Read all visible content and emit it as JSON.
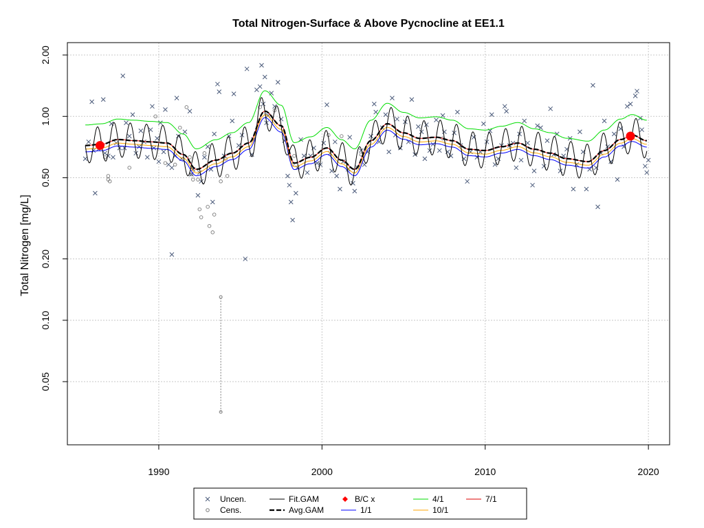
{
  "chart_data": {
    "type": "scatter",
    "title": "Total Nitrogen-Surface & Above Pycnocline at EE1.1",
    "xlabel": "",
    "ylabel": "Total Nitrogen [mg/L]",
    "y_scale": "log",
    "xlim": [
      1984.4,
      2021.3
    ],
    "ylim": [
      0.0245,
      2.3
    ],
    "x_ticks": [
      1990,
      2000,
      2010,
      2020
    ],
    "y_ticks": [
      0.05,
      0.1,
      0.2,
      0.5,
      1.0,
      2.0
    ],
    "y_tick_labels": [
      "0.05",
      "0.10",
      "0.20",
      "0.50",
      "1.00",
      "2.00"
    ],
    "grid": true,
    "legend_position": "bottom",
    "colors": {
      "uncen": "#4a5a7a",
      "cens": "#7a7a7a",
      "fit": "#000000",
      "avg": "#000000",
      "bc": "#ff0000",
      "s1": "#0000ff",
      "s4": "#00dd00",
      "s7": "#dd0000",
      "s10": "#ffa500"
    },
    "legend": [
      {
        "label": "Uncen.",
        "symbol": "x",
        "color": "#4a5a7a"
      },
      {
        "label": "Cens.",
        "symbol": "o",
        "color": "#7a7a7a"
      },
      {
        "label": "Fit.GAM",
        "symbol": "line",
        "color": "#000000"
      },
      {
        "label": "Avg.GAM",
        "symbol": "dash",
        "color": "#000000"
      },
      {
        "label": "B/C x",
        "symbol": "diamond",
        "color": "#ff0000"
      },
      {
        "label": "1/1",
        "symbol": "line",
        "color": "#0000ff"
      },
      {
        "label": "4/1",
        "symbol": "line",
        "color": "#00dd00"
      },
      {
        "label": "7/1",
        "symbol": "line",
        "color": "#dd0000"
      },
      {
        "label": "10/1",
        "symbol": "line",
        "color": "#ffa500"
      }
    ],
    "avg_gam": {
      "x": [
        1985.5,
        1986.5,
        1987.5,
        1988.5,
        1989.5,
        1990.5,
        1991.5,
        1992.3,
        1993.5,
        1994.5,
        1995.5,
        1996.5,
        1997.5,
        1998.3,
        1999.3,
        2000.3,
        2001.2,
        2002.0,
        2003.0,
        2004.0,
        2005.0,
        2006.0,
        2007.0,
        2008.0,
        2009.0,
        2010.0,
        2011.0,
        2012.0,
        2013.0,
        2014.0,
        2015.0,
        2016.3,
        2017.3,
        2018.3,
        2019.0,
        2019.9
      ],
      "y": [
        0.72,
        0.73,
        0.77,
        0.76,
        0.75,
        0.74,
        0.65,
        0.55,
        0.61,
        0.66,
        0.74,
        1.06,
        0.9,
        0.59,
        0.63,
        0.7,
        0.61,
        0.55,
        0.76,
        0.92,
        0.83,
        0.78,
        0.79,
        0.76,
        0.69,
        0.68,
        0.71,
        0.74,
        0.69,
        0.66,
        0.62,
        0.6,
        0.68,
        0.77,
        0.81,
        0.76
      ]
    },
    "seasonal_series": [
      {
        "name": "1/1",
        "ratio": 0.93
      },
      {
        "name": "4/1",
        "ratio": 1.26
      },
      {
        "name": "7/1",
        "ratio": 1.0
      },
      {
        "name": "10/1",
        "ratio": 0.96
      }
    ],
    "fit_gam_amplitude": 1.22,
    "bc_points": [
      {
        "x": 1986.4,
        "y": 0.72
      },
      {
        "x": 2018.9,
        "y": 0.8
      }
    ],
    "uncensored": [
      [
        1985.5,
        0.62
      ],
      [
        1985.7,
        0.75
      ],
      [
        1985.9,
        1.18
      ],
      [
        1986.0,
        0.68
      ],
      [
        1986.1,
        0.42
      ],
      [
        1986.3,
        0.69
      ],
      [
        1986.6,
        1.21
      ],
      [
        1986.7,
        0.66
      ],
      [
        1986.9,
        0.64
      ],
      [
        1987.1,
        0.92
      ],
      [
        1987.2,
        0.63
      ],
      [
        1987.4,
        0.74
      ],
      [
        1987.6,
        0.7
      ],
      [
        1987.8,
        1.58
      ],
      [
        1987.9,
        0.7
      ],
      [
        1988.0,
        0.93
      ],
      [
        1988.2,
        0.8
      ],
      [
        1988.4,
        1.02
      ],
      [
        1988.6,
        0.66
      ],
      [
        1988.8,
        0.71
      ],
      [
        1988.9,
        0.85
      ],
      [
        1989.1,
        0.75
      ],
      [
        1989.3,
        0.63
      ],
      [
        1989.5,
        0.86
      ],
      [
        1989.6,
        1.12
      ],
      [
        1989.7,
        0.7
      ],
      [
        1989.9,
        0.78
      ],
      [
        1990.0,
        0.6
      ],
      [
        1990.1,
        0.93
      ],
      [
        1990.3,
        0.67
      ],
      [
        1990.4,
        1.08
      ],
      [
        1990.6,
        0.58
      ],
      [
        1990.8,
        0.56
      ],
      [
        1990.8,
        0.21
      ],
      [
        1991.0,
        0.64
      ],
      [
        1991.1,
        1.23
      ],
      [
        1991.2,
        0.8
      ],
      [
        1991.4,
        0.62
      ],
      [
        1991.6,
        0.84
      ],
      [
        1991.9,
        1.06
      ],
      [
        1992.0,
        0.52
      ],
      [
        1992.1,
        0.55
      ],
      [
        1992.4,
        0.41
      ],
      [
        1992.5,
        0.53
      ],
      [
        1992.6,
        0.48
      ],
      [
        1992.8,
        0.63
      ],
      [
        1993.0,
        0.71
      ],
      [
        1993.2,
        0.55
      ],
      [
        1993.3,
        0.38
      ],
      [
        1993.4,
        0.82
      ],
      [
        1993.6,
        1.44
      ],
      [
        1993.7,
        1.32
      ],
      [
        1994.0,
        0.64
      ],
      [
        1994.3,
        0.8
      ],
      [
        1994.5,
        0.95
      ],
      [
        1994.6,
        1.29
      ],
      [
        1994.9,
        0.72
      ],
      [
        1995.1,
        0.81
      ],
      [
        1995.3,
        0.2
      ],
      [
        1995.4,
        1.71
      ],
      [
        1995.7,
        0.65
      ],
      [
        1995.8,
        0.77
      ],
      [
        1996.0,
        1.35
      ],
      [
        1996.2,
        1.4
      ],
      [
        1996.3,
        1.78
      ],
      [
        1996.4,
        1.15
      ],
      [
        1996.5,
        1.56
      ],
      [
        1996.6,
        0.93
      ],
      [
        1996.7,
        1.01
      ],
      [
        1996.9,
        1.3
      ],
      [
        1997.1,
        1.12
      ],
      [
        1997.3,
        1.47
      ],
      [
        1997.5,
        0.97
      ],
      [
        1997.7,
        0.76
      ],
      [
        1997.9,
        0.51
      ],
      [
        1998.0,
        0.46
      ],
      [
        1998.1,
        0.38
      ],
      [
        1998.2,
        0.31
      ],
      [
        1998.4,
        0.42
      ],
      [
        1998.5,
        0.56
      ],
      [
        1998.7,
        0.77
      ],
      [
        1998.9,
        0.64
      ],
      [
        1999.1,
        0.53
      ],
      [
        1999.3,
        0.64
      ],
      [
        1999.5,
        0.7
      ],
      [
        1999.7,
        0.59
      ],
      [
        1999.9,
        0.58
      ],
      [
        2000.1,
        0.74
      ],
      [
        2000.3,
        1.14
      ],
      [
        2000.5,
        0.66
      ],
      [
        2000.6,
        0.54
      ],
      [
        2000.8,
        0.75
      ],
      [
        2000.9,
        0.51
      ],
      [
        2001.1,
        0.44
      ],
      [
        2001.3,
        0.6
      ],
      [
        2001.6,
        0.55
      ],
      [
        2001.7,
        0.79
      ],
      [
        2001.9,
        0.47
      ],
      [
        2002.0,
        0.43
      ],
      [
        2002.2,
        0.56
      ],
      [
        2002.4,
        0.68
      ],
      [
        2002.6,
        0.58
      ],
      [
        2002.8,
        0.67
      ],
      [
        2003.0,
        0.8
      ],
      [
        2003.2,
        1.15
      ],
      [
        2003.3,
        1.05
      ],
      [
        2003.5,
        0.75
      ],
      [
        2003.7,
        0.88
      ],
      [
        2003.9,
        1.02
      ],
      [
        2004.1,
        0.67
      ],
      [
        2004.3,
        1.23
      ],
      [
        2004.5,
        0.81
      ],
      [
        2004.6,
        0.97
      ],
      [
        2004.8,
        0.7
      ],
      [
        2005.1,
        0.94
      ],
      [
        2005.3,
        0.75
      ],
      [
        2005.5,
        1.21
      ],
      [
        2005.7,
        0.65
      ],
      [
        2005.9,
        0.89
      ],
      [
        2006.1,
        0.84
      ],
      [
        2006.3,
        0.62
      ],
      [
        2006.4,
        0.91
      ],
      [
        2006.6,
        0.68
      ],
      [
        2006.8,
        0.73
      ],
      [
        2007.0,
        0.96
      ],
      [
        2007.2,
        0.68
      ],
      [
        2007.4,
        1.01
      ],
      [
        2007.5,
        0.84
      ],
      [
        2007.7,
        0.67
      ],
      [
        2007.9,
        0.64
      ],
      [
        2008.1,
        0.83
      ],
      [
        2008.3,
        1.05
      ],
      [
        2008.5,
        0.72
      ],
      [
        2008.7,
        0.62
      ],
      [
        2008.9,
        0.48
      ],
      [
        2009.1,
        0.67
      ],
      [
        2009.3,
        0.79
      ],
      [
        2009.5,
        0.63
      ],
      [
        2009.7,
        0.67
      ],
      [
        2009.9,
        0.92
      ],
      [
        2010.1,
        0.75
      ],
      [
        2010.3,
        0.85
      ],
      [
        2010.4,
        1.02
      ],
      [
        2010.6,
        0.58
      ],
      [
        2010.8,
        0.62
      ],
      [
        2011.0,
        0.72
      ],
      [
        2011.2,
        1.12
      ],
      [
        2011.3,
        1.06
      ],
      [
        2011.5,
        0.72
      ],
      [
        2011.7,
        0.74
      ],
      [
        2011.9,
        0.56
      ],
      [
        2012.1,
        0.82
      ],
      [
        2012.2,
        0.61
      ],
      [
        2012.4,
        0.95
      ],
      [
        2012.6,
        0.74
      ],
      [
        2012.9,
        0.46
      ],
      [
        2013.0,
        0.54
      ],
      [
        2013.2,
        0.9
      ],
      [
        2013.4,
        0.88
      ],
      [
        2013.6,
        0.57
      ],
      [
        2013.8,
        0.76
      ],
      [
        2014.0,
        1.09
      ],
      [
        2014.2,
        0.65
      ],
      [
        2014.4,
        0.82
      ],
      [
        2014.6,
        0.54
      ],
      [
        2014.8,
        0.64
      ],
      [
        2015.0,
        0.69
      ],
      [
        2015.2,
        0.78
      ],
      [
        2015.4,
        0.44
      ],
      [
        2015.6,
        0.58
      ],
      [
        2015.8,
        0.84
      ],
      [
        2016.0,
        0.67
      ],
      [
        2016.2,
        0.44
      ],
      [
        2016.4,
        0.55
      ],
      [
        2016.6,
        1.42
      ],
      [
        2016.8,
        0.56
      ],
      [
        2016.9,
        0.36
      ],
      [
        2017.1,
        0.66
      ],
      [
        2017.3,
        0.95
      ],
      [
        2017.5,
        0.71
      ],
      [
        2017.7,
        0.6
      ],
      [
        2017.9,
        0.82
      ],
      [
        2018.1,
        0.49
      ],
      [
        2018.3,
        0.87
      ],
      [
        2018.5,
        0.71
      ],
      [
        2018.7,
        1.12
      ],
      [
        2018.9,
        1.15
      ],
      [
        2019.0,
        0.8
      ],
      [
        2019.2,
        1.26
      ],
      [
        2019.3,
        1.33
      ],
      [
        2019.5,
        0.98
      ],
      [
        2019.6,
        0.86
      ],
      [
        2019.8,
        0.57
      ],
      [
        2019.9,
        0.53
      ],
      [
        2020.0,
        0.61
      ]
    ],
    "censored": [
      [
        1986.7,
        0.63
      ],
      [
        1986.9,
        0.49
      ],
      [
        1986.9,
        0.51
      ],
      [
        1987.0,
        0.48
      ],
      [
        1988.2,
        0.56
      ],
      [
        1989.8,
        1.0
      ],
      [
        1990.4,
        0.59
      ],
      [
        1991.0,
        0.58
      ],
      [
        1991.3,
        0.88
      ],
      [
        1991.7,
        1.11
      ],
      [
        1991.9,
        0.63
      ],
      [
        1992.0,
        0.52
      ],
      [
        1992.1,
        0.49
      ],
      [
        1992.4,
        0.49
      ],
      [
        1992.5,
        0.35
      ],
      [
        1992.6,
        0.32
      ],
      [
        1992.8,
        0.66
      ],
      [
        1993.0,
        0.36
      ],
      [
        1993.1,
        0.29
      ],
      [
        1993.3,
        0.27
      ],
      [
        1993.4,
        0.33
      ],
      [
        1993.8,
        0.48
      ],
      [
        1994.1,
        0.62
      ],
      [
        1994.2,
        0.51
      ],
      [
        1996.2,
        1.11
      ],
      [
        1997.1,
        1.07
      ],
      [
        1998.2,
        0.58
      ],
      [
        1998.3,
        0.64
      ],
      [
        2000.4,
        0.81
      ],
      [
        2001.2,
        0.8
      ],
      [
        2002.4,
        0.65
      ],
      [
        2007.4,
        0.78
      ]
    ],
    "censored_interval": {
      "x": 1993.8,
      "y_low": 0.0355,
      "y_high": 0.13
    }
  }
}
